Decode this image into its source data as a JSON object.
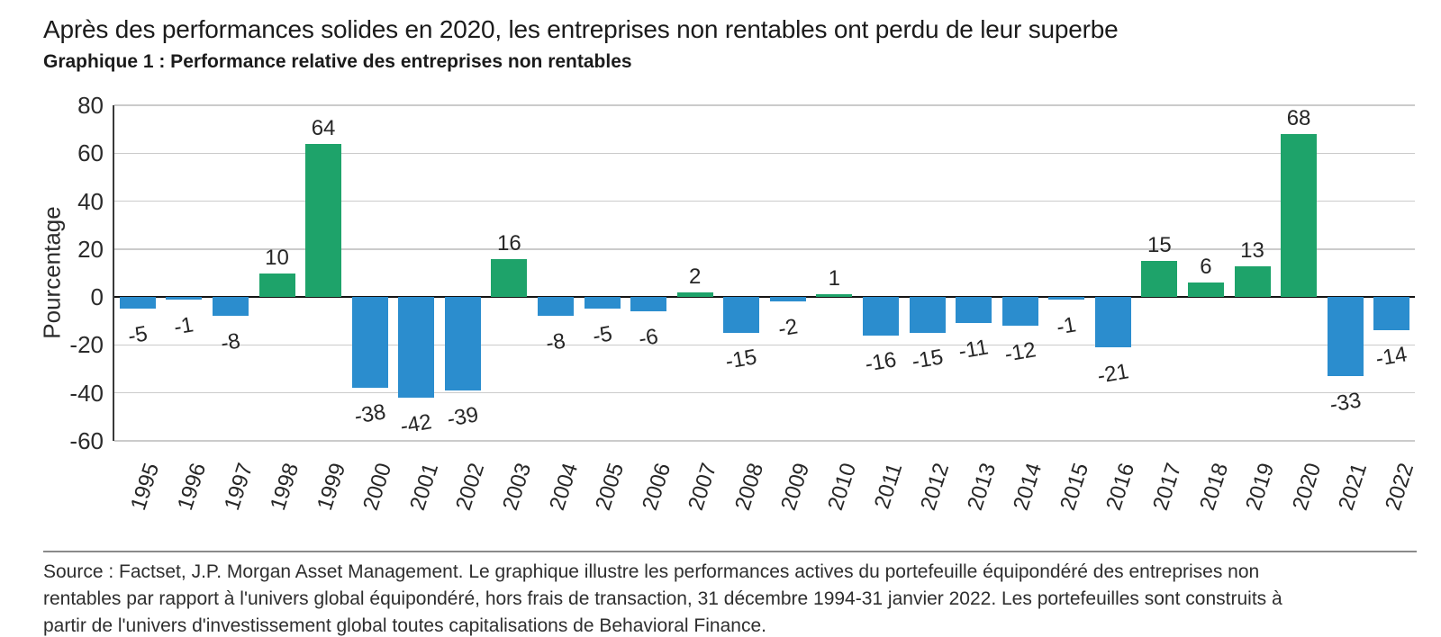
{
  "header": {
    "title": "Après des performances solides en 2020, les entreprises non rentables ont perdu de leur superbe",
    "subtitle": "Graphique 1 : Performance relative des entreprises non rentables"
  },
  "chart_data": {
    "type": "bar",
    "title": "Graphique 1 : Performance relative des entreprises non rentables",
    "categories": [
      "1995",
      "1996",
      "1997",
      "1998",
      "1999",
      "2000",
      "2001",
      "2002",
      "2003",
      "2004",
      "2005",
      "2006",
      "2007",
      "2008",
      "2009",
      "2010",
      "2011",
      "2012",
      "2013",
      "2014",
      "2015",
      "2016",
      "2017",
      "2018",
      "2019",
      "2020",
      "2021",
      "2022"
    ],
    "values": [
      -5,
      -1,
      -8,
      10,
      64,
      -38,
      -42,
      -39,
      16,
      -8,
      -5,
      -6,
      2,
      -15,
      -2,
      1,
      -16,
      -15,
      -11,
      -12,
      -1,
      -21,
      15,
      6,
      13,
      68,
      -33,
      -14
    ],
    "xlabel": "",
    "ylabel": "Pourcentage",
    "ylim": [
      -60,
      80
    ],
    "yticks": [
      80,
      60,
      40,
      20,
      0,
      -20,
      -40,
      -60
    ],
    "grid": true,
    "legend_position": "none",
    "colors": {
      "positive": "#1ea36a",
      "negative": "#2b8dce",
      "gridline": "#cbcbcb",
      "zero_line": "#141414"
    }
  },
  "footer": {
    "source_lines": [
      "Source : Factset, J.P. Morgan Asset Management. Le graphique illustre les performances actives du portefeuille équipondéré des entreprises non",
      "rentables par rapport à l'univers global équipondéré, hors frais de transaction, 31 décembre 1994-31 janvier 2022. Les portefeuilles sont construits à",
      "partir de l'univers d'investissement global toutes capitalisations de Behavioral Finance."
    ]
  }
}
